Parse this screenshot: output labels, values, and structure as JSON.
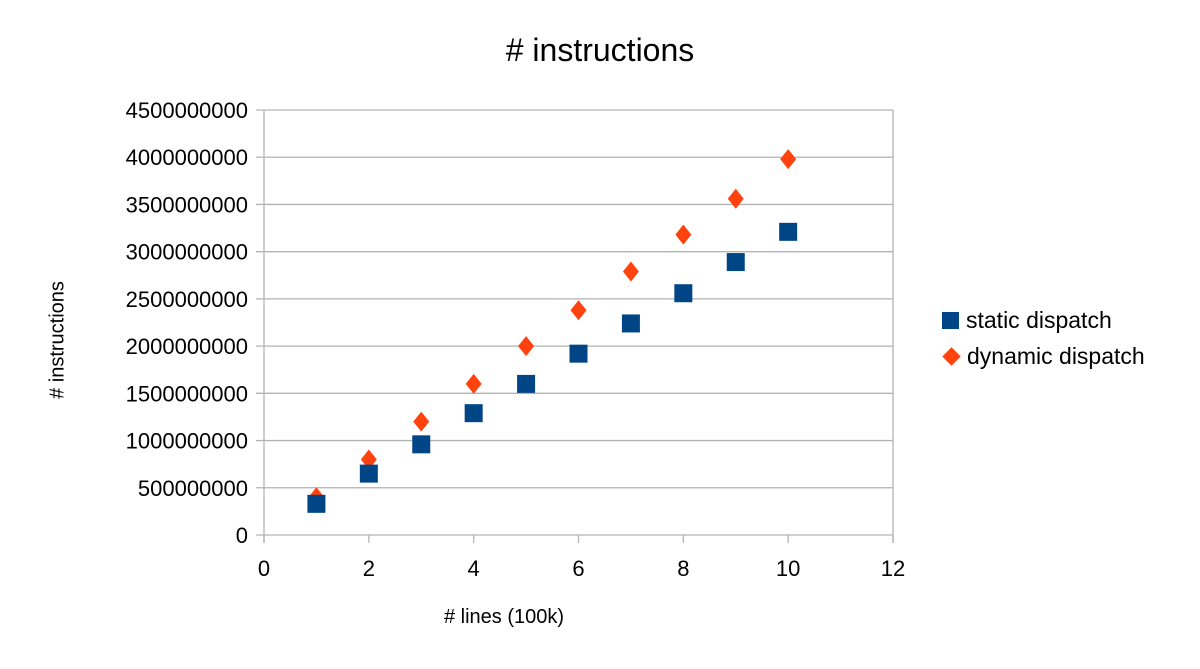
{
  "chart_data": {
    "type": "scatter",
    "title": "# instructions",
    "xlabel": "# lines (100k)",
    "ylabel": "# instructions",
    "xlim": [
      0,
      12
    ],
    "ylim": [
      0,
      4500000000
    ],
    "x_ticks": [
      0,
      2,
      4,
      6,
      8,
      10,
      12
    ],
    "y_ticks": [
      0,
      500000000,
      1000000000,
      1500000000,
      2000000000,
      2500000000,
      3000000000,
      3500000000,
      4000000000,
      4500000000
    ],
    "grid": "horizontal",
    "legend_position": "right",
    "x": [
      1,
      2,
      3,
      4,
      5,
      6,
      7,
      8,
      9,
      10
    ],
    "series": [
      {
        "name": "static dispatch",
        "marker": "square",
        "color": "#004586",
        "values": [
          330000000,
          650000000,
          960000000,
          1290000000,
          1600000000,
          1920000000,
          2240000000,
          2560000000,
          2890000000,
          3210000000
        ]
      },
      {
        "name": "dynamic dispatch",
        "marker": "diamond",
        "color": "#ff420e",
        "values": [
          400000000,
          800000000,
          1200000000,
          1600000000,
          2000000000,
          2380000000,
          2790000000,
          3180000000,
          3560000000,
          3980000000
        ]
      }
    ]
  },
  "legend": {
    "static": "static dispatch",
    "dynamic": "dynamic dispatch"
  }
}
